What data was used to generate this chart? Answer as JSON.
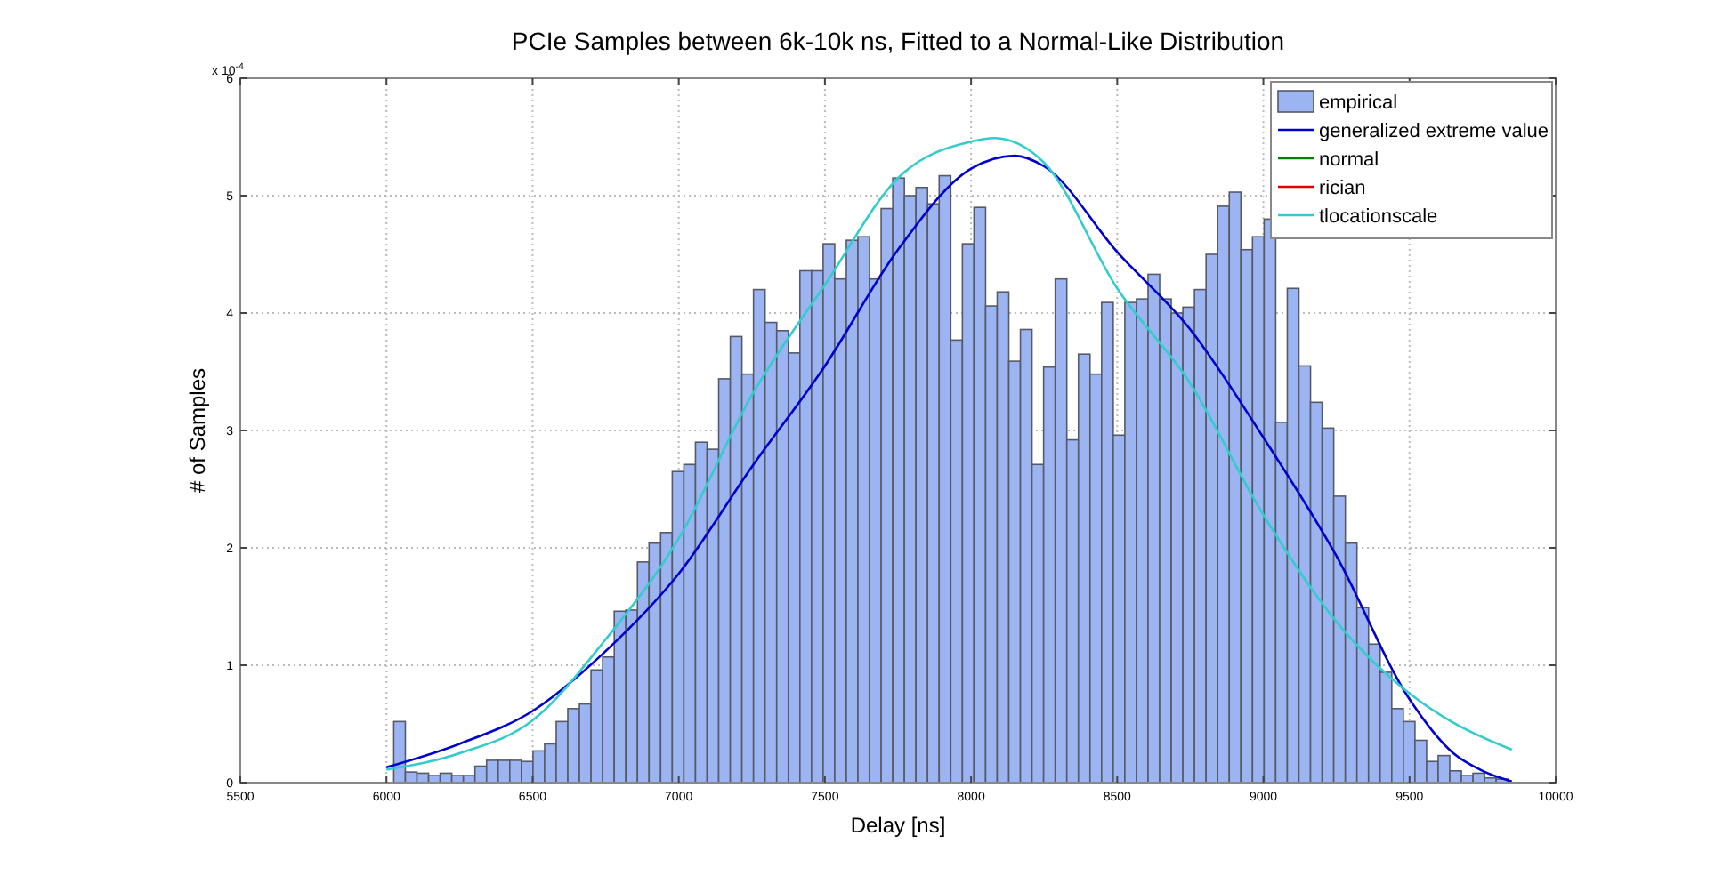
{
  "chart_data": {
    "type": "histogram",
    "title": "PCIe Samples between 6k-10k ns, Fitted to a Normal-Like Distribution",
    "xlabel": "Delay [ns]",
    "ylabel": "# of Samples",
    "annotations": [
      "x 10$^{-4}$"
    ],
    "xlim": [
      5500,
      10000
    ],
    "xticks": [
      5500,
      6000,
      6500,
      7000,
      7500,
      8000,
      8500,
      9000,
      9500,
      10000
    ],
    "ylim": [
      0,
      6
    ],
    "yticks": [
      0,
      1,
      2,
      3,
      4,
      5,
      6
    ],
    "grid": true,
    "legend": "top right",
    "series": [
      {
        "name": "empirical",
        "color": "#9db4f2",
        "bins": [
          6025,
          6064.7,
          6104.4,
          6144.1,
          6183.8,
          6223.5,
          6263.2,
          6302.9,
          6342.6,
          6382.3,
          6422,
          6461.7,
          6501.4,
          6541.1,
          6580.8,
          6620.5,
          6660.2,
          6699.9,
          6739.6,
          6779.3,
          6819,
          6858.7,
          6898.4,
          6938.1,
          6977.8,
          7017.5,
          7057.2,
          7096.9,
          7136.6,
          7176.3,
          7216,
          7255.7,
          7295.4,
          7335.1,
          7374.8,
          7414.5,
          7454.2,
          7493.9,
          7533.6,
          7573.3,
          7613,
          7652.7,
          7692.4,
          7732.1,
          7771.8,
          7811.5,
          7851.2,
          7890.9,
          7930.6,
          7970.3,
          8010,
          8049.7,
          8089.4,
          8129.1,
          8168.8,
          8208.5,
          8248.2,
          8287.9,
          8327.6,
          8367.3,
          8407,
          8446.7,
          8486.4,
          8526.1,
          8565.8,
          8605.5,
          8645.2,
          8684.9,
          8724.6,
          8764.3,
          8804,
          8843.7,
          8883.4,
          8923.1,
          8962.8,
          9002.5,
          9042.2,
          9081.9,
          9121.6,
          9161.3,
          9201,
          9240.7,
          9280.4,
          9320.1,
          9359.8,
          9399.5,
          9439.2,
          9478.9,
          9518.6,
          9558.3,
          9598,
          9637.7,
          9677.4,
          9717.1,
          9756.8,
          9796.5,
          9836.2
        ],
        "values": [
          0.52,
          0.09,
          0.08,
          0.06,
          0.08,
          0.06,
          0.06,
          0.14,
          0.19,
          0.19,
          0.19,
          0.18,
          0.27,
          0.33,
          0.52,
          0.63,
          0.67,
          0.96,
          1.07,
          1.46,
          1.47,
          1.88,
          2.04,
          2.13,
          2.65,
          2.71,
          2.9,
          2.84,
          3.44,
          3.8,
          3.48,
          4.2,
          3.92,
          3.85,
          3.66,
          4.36,
          4.36,
          4.59,
          4.29,
          4.62,
          4.65,
          4.29,
          4.89,
          5.15,
          5,
          5.07,
          4.93,
          5.17,
          3.77,
          4.59,
          4.9,
          4.06,
          4.18,
          3.59,
          3.86,
          2.71,
          3.54,
          4.29,
          2.92,
          3.65,
          3.48,
          4.09,
          2.96,
          4.09,
          4.12,
          4.33,
          4.12,
          4,
          4.05,
          4.2,
          4.5,
          4.91,
          5.03,
          4.54,
          4.65,
          4.8,
          3.07,
          4.21,
          3.55,
          3.24,
          3.02,
          2.44,
          2.04,
          1.49,
          1.18,
          0.94,
          0.63,
          0.52,
          0.36,
          0.18,
          0.23,
          0.1,
          0.06,
          0.08,
          0.04,
          0.03
        ]
      },
      {
        "type": "line",
        "name": "generalized extreme value",
        "color": "#0000cc",
        "x": [
          6000,
          6250,
          6500,
          6750,
          7000,
          7250,
          7500,
          7750,
          8000,
          8150,
          8250,
          8500,
          8750,
          9000,
          9250,
          9500,
          9650,
          9750,
          9850
        ],
        "values": [
          0.13,
          0.33,
          0.61,
          1.12,
          1.78,
          2.69,
          3.55,
          4.54,
          5.23,
          5.34,
          5.25,
          4.52,
          3.86,
          2.94,
          1.93,
          0.71,
          0.25,
          0.1,
          0.01
        ]
      },
      {
        "type": "line",
        "name": "normal",
        "color": "#007f00"
      },
      {
        "type": "line",
        "name": "rician",
        "color": "#e00000"
      },
      {
        "type": "line",
        "name": "tlocationscale",
        "color": "#33cccc",
        "x": [
          6000,
          6250,
          6500,
          6750,
          7000,
          7250,
          7500,
          7750,
          8000,
          8080,
          8250,
          8500,
          8750,
          9000,
          9250,
          9500,
          9650,
          9850
        ],
        "values": [
          0.11,
          0.25,
          0.53,
          1.22,
          2.08,
          3.3,
          4.24,
          5.15,
          5.46,
          5.49,
          5.28,
          4.21,
          3.4,
          2.28,
          1.37,
          0.76,
          0.51,
          0.28
        ]
      }
    ]
  }
}
